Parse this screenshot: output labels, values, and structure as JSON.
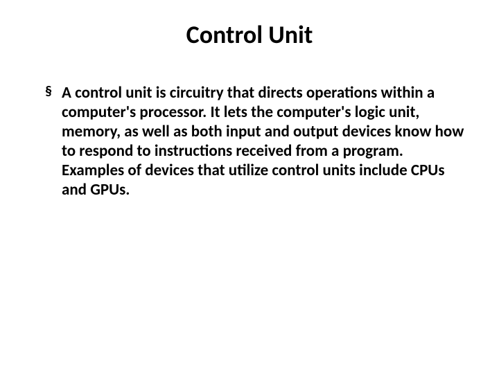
{
  "slide": {
    "title": "Control Unit",
    "bullet": {
      "marker": "§",
      "text": "A control unit is circuitry that directs operations within a computer's processor. It lets the computer's logic unit, memory, as well as both input and output devices know how to respond to instructions received from a program. Examples of devices that utilize control units include CPUs and GPUs."
    }
  },
  "style": {
    "background_color": "#ffffff",
    "text_color": "#000000",
    "title_fontsize": 36,
    "body_fontsize": 23,
    "font_family": "Calibri, Arial, sans-serif"
  }
}
